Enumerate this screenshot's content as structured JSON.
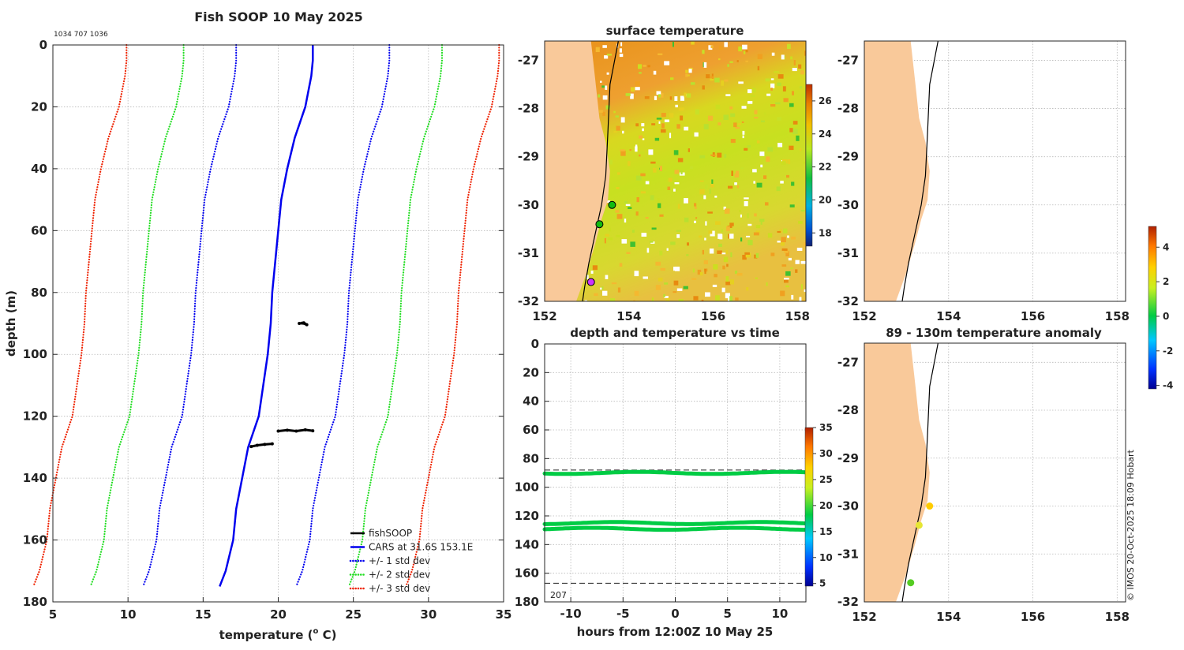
{
  "chart_data": [
    {
      "type": "line",
      "title": "Fish SOOP 10 May 2025",
      "subtitle": "1034 707 1036",
      "xlabel": "temperature (",
      "xlabel_sup": "o",
      "xlabel_unit": " C)",
      "ylabel": "depth (m)",
      "xlim": [
        5,
        35
      ],
      "ylim": [
        0,
        180
      ],
      "xticks": [
        5,
        10,
        15,
        20,
        25,
        30,
        35
      ],
      "yticks": [
        0,
        20,
        40,
        60,
        80,
        100,
        120,
        140,
        160,
        180
      ],
      "depth": [
        0,
        5,
        10,
        20,
        30,
        40,
        50,
        60,
        70,
        80,
        90,
        100,
        110,
        120,
        130,
        140,
        150,
        160,
        170,
        175
      ],
      "series": [
        {
          "name": "CARS at 31.6S 153.1E",
          "color": "#0000ee",
          "style": "solid",
          "values": [
            22.3,
            22.3,
            22.2,
            21.8,
            21.1,
            20.6,
            20.2,
            20.0,
            19.8,
            19.6,
            19.5,
            19.3,
            19.0,
            18.7,
            18.0,
            17.6,
            17.2,
            17.0,
            16.5,
            16.1
          ]
        },
        {
          "name": "+/- 1 std dev",
          "color": "#0000ee",
          "style": "dotted",
          "offset": 5.1
        },
        {
          "name": "+/- 2 std dev",
          "color": "#22dd22",
          "style": "dotted",
          "offset": 8.6
        },
        {
          "name": "+/- 3 std dev",
          "color": "#ee2200",
          "style": "dotted",
          "offset": 12.4
        }
      ],
      "fishsoop": [
        {
          "depth": [
            90.0,
            89.9,
            90.4,
            89.8
          ],
          "temp": [
            21.4,
            21.6,
            21.9,
            21.7
          ]
        },
        {
          "depth": [
            124.8,
            124.5,
            124.8,
            124.4,
            124.7
          ],
          "temp": [
            20.0,
            20.6,
            21.2,
            21.8,
            22.3
          ]
        },
        {
          "depth": [
            129.8,
            129.4,
            129.1,
            128.9
          ],
          "temp": [
            18.2,
            18.6,
            19.1,
            19.6
          ]
        }
      ],
      "legend": [
        "fishSOOP",
        "CARS at 31.6S 153.1E",
        "+/- 1 std dev",
        "+/- 2 std dev",
        "+/- 3 std dev"
      ],
      "legend_position": "bottom-right"
    },
    {
      "type": "heatmap",
      "title": "surface temperature",
      "xlim": [
        152,
        158.2
      ],
      "ylim": [
        -32,
        -26.6
      ],
      "xticks": [
        152,
        154,
        156,
        158
      ],
      "yticks": [
        -27,
        -28,
        -29,
        -30,
        -31,
        -32
      ],
      "colorbar": {
        "min": 17.2,
        "max": 27,
        "ticks": [
          18,
          20,
          22,
          24,
          26
        ]
      },
      "coast_lon": [
        153.1,
        153.2,
        153.3,
        153.45,
        153.55,
        153.5,
        153.35,
        153.2,
        153.0,
        152.75
      ],
      "coast_lat": [
        -26.6,
        -27.4,
        -28.2,
        -28.7,
        -29.3,
        -29.9,
        -30.3,
        -30.8,
        -31.4,
        -32.0
      ],
      "contour_lon": [
        153.75,
        153.55,
        153.5,
        153.45,
        153.35,
        153.2,
        153.05,
        152.95,
        152.9
      ],
      "contour_lat": [
        -26.6,
        -27.5,
        -28.5,
        -29.4,
        -30.0,
        -30.6,
        -31.2,
        -31.7,
        -32.0
      ],
      "stations": [
        {
          "lon": 153.6,
          "lat": -30.0,
          "color": "#11bb11"
        },
        {
          "lon": 153.3,
          "lat": -30.4,
          "color": "#11bb11"
        },
        {
          "lon": 153.1,
          "lat": -31.6,
          "color": "#cc33ff"
        }
      ]
    },
    {
      "type": "scatter",
      "title": "depth and temperature vs time",
      "xlabel": "hours from 12:00Z 10 May 25",
      "ylabel": "",
      "xlim": [
        -12.5,
        12.5
      ],
      "ylim": [
        0,
        180
      ],
      "xticks": [
        -10,
        -5,
        0,
        5,
        10
      ],
      "yticks": [
        0,
        20,
        40,
        60,
        80,
        100,
        120,
        140,
        160,
        180
      ],
      "dashed_lines": [
        88,
        167
      ],
      "annotation": "207",
      "tracks": [
        {
          "depth": 90,
          "temp": 21.6
        },
        {
          "depth": 125,
          "temp": 21.0
        },
        {
          "depth": 129,
          "temp": 19.0
        }
      ],
      "colorbar": {
        "min": 4.5,
        "max": 35,
        "ticks": [
          5,
          10,
          15,
          20,
          25,
          30,
          35
        ]
      }
    },
    {
      "type": "scatter",
      "title": "",
      "xlim": [
        152,
        158.2
      ],
      "ylim": [
        -32,
        -26.6
      ],
      "xticks": [
        152,
        154,
        156,
        158
      ],
      "yticks": [
        -27,
        -28,
        -29,
        -30,
        -31,
        -32
      ],
      "points": []
    },
    {
      "type": "scatter",
      "title": "89 - 130m temperature anomaly",
      "xlim": [
        152,
        158.2
      ],
      "ylim": [
        -32,
        -26.6
      ],
      "xticks": [
        152,
        154,
        156,
        158
      ],
      "yticks": [
        -27,
        -28,
        -29,
        -30,
        -31,
        -32
      ],
      "points": [
        {
          "lon": 153.55,
          "lat": -30.0,
          "anomaly": 2.6,
          "color": "#ffcc00"
        },
        {
          "lon": 153.3,
          "lat": -30.4,
          "anomaly": 2.2,
          "color": "#e6e633"
        },
        {
          "lon": 153.1,
          "lat": -31.6,
          "anomaly": 0.8,
          "color": "#55cc22"
        }
      ],
      "colorbar": {
        "min": -4.2,
        "max": 5.2,
        "ticks": [
          -4,
          -2,
          0,
          2,
          4
        ]
      }
    }
  ],
  "credit": "© IMOS 20-Oct-2025 18:09 Hobart"
}
